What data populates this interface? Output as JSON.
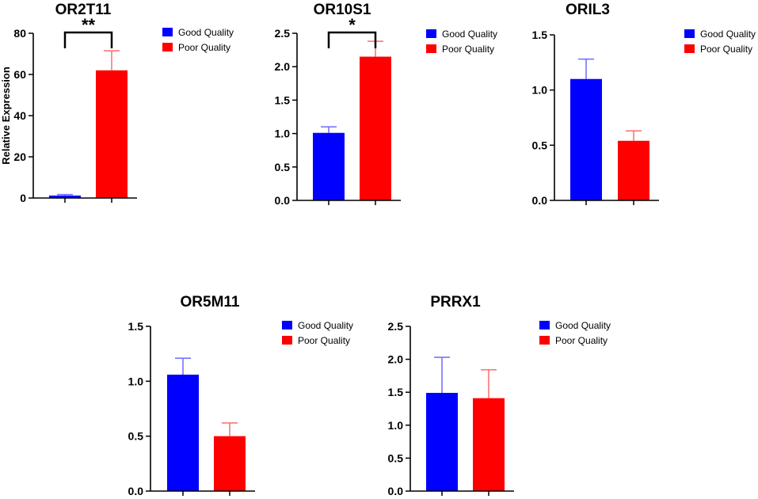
{
  "figure": {
    "ylabel": "Relative Expression"
  },
  "legend": [
    {
      "name": "Good Quality",
      "color": "#0000ff",
      "error_color": "#6b6bff"
    },
    {
      "name": "Poor Quality",
      "color": "#ff0000",
      "error_color": "#ff6b6b"
    }
  ],
  "chart_data": [
    {
      "type": "bar",
      "title": "OR2T11",
      "ylabel": "Relative Expression",
      "ylim": [
        0,
        80
      ],
      "yticks": [
        "0",
        "20",
        "40",
        "60",
        "80"
      ],
      "ytick_values": [
        0,
        20,
        40,
        60,
        80
      ],
      "categories": [
        "Good Quality",
        "Poor Quality"
      ],
      "values": [
        1.2,
        62
      ],
      "errors": [
        0.5,
        9.5
      ],
      "significance": "**"
    },
    {
      "type": "bar",
      "title": "OR10S1",
      "ylabel": "",
      "ylim": [
        0,
        2.5
      ],
      "yticks": [
        "0.0",
        "0.5",
        "1.0",
        "1.5",
        "2.0",
        "2.5"
      ],
      "ytick_values": [
        0,
        0.5,
        1,
        1.5,
        2,
        2.5
      ],
      "categories": [
        "Good Quality",
        "Poor Quality"
      ],
      "values": [
        1.01,
        2.15
      ],
      "errors": [
        0.09,
        0.23
      ],
      "significance": "*"
    },
    {
      "type": "bar",
      "title": "ORIL3",
      "ylabel": "",
      "ylim": [
        0,
        1.5
      ],
      "yticks": [
        "0.0",
        "0.5",
        "1.0",
        "1.5"
      ],
      "ytick_values": [
        0,
        0.5,
        1,
        1.5
      ],
      "categories": [
        "Good Quality",
        "Poor Quality"
      ],
      "values": [
        1.1,
        0.54
      ],
      "errors": [
        0.18,
        0.09
      ],
      "significance": ""
    },
    {
      "type": "bar",
      "title": "OR5M11",
      "ylabel": "",
      "ylim": [
        0,
        1.5
      ],
      "yticks": [
        "0.0",
        "0.5",
        "1.0",
        "1.5"
      ],
      "ytick_values": [
        0,
        0.5,
        1,
        1.5
      ],
      "categories": [
        "Good Quality",
        "Poor Quality"
      ],
      "values": [
        1.06,
        0.5
      ],
      "errors": [
        0.15,
        0.12
      ],
      "significance": ""
    },
    {
      "type": "bar",
      "title": "PRRX1",
      "ylabel": "",
      "ylim": [
        0,
        2.5
      ],
      "yticks": [
        "0.0",
        "0.5",
        "1.0",
        "1.5",
        "2.0",
        "2.5"
      ],
      "ytick_values": [
        0,
        0.5,
        1,
        1.5,
        2,
        2.5
      ],
      "categories": [
        "Good Quality",
        "Poor Quality"
      ],
      "values": [
        1.49,
        1.41
      ],
      "errors": [
        0.54,
        0.43
      ],
      "significance": ""
    }
  ]
}
